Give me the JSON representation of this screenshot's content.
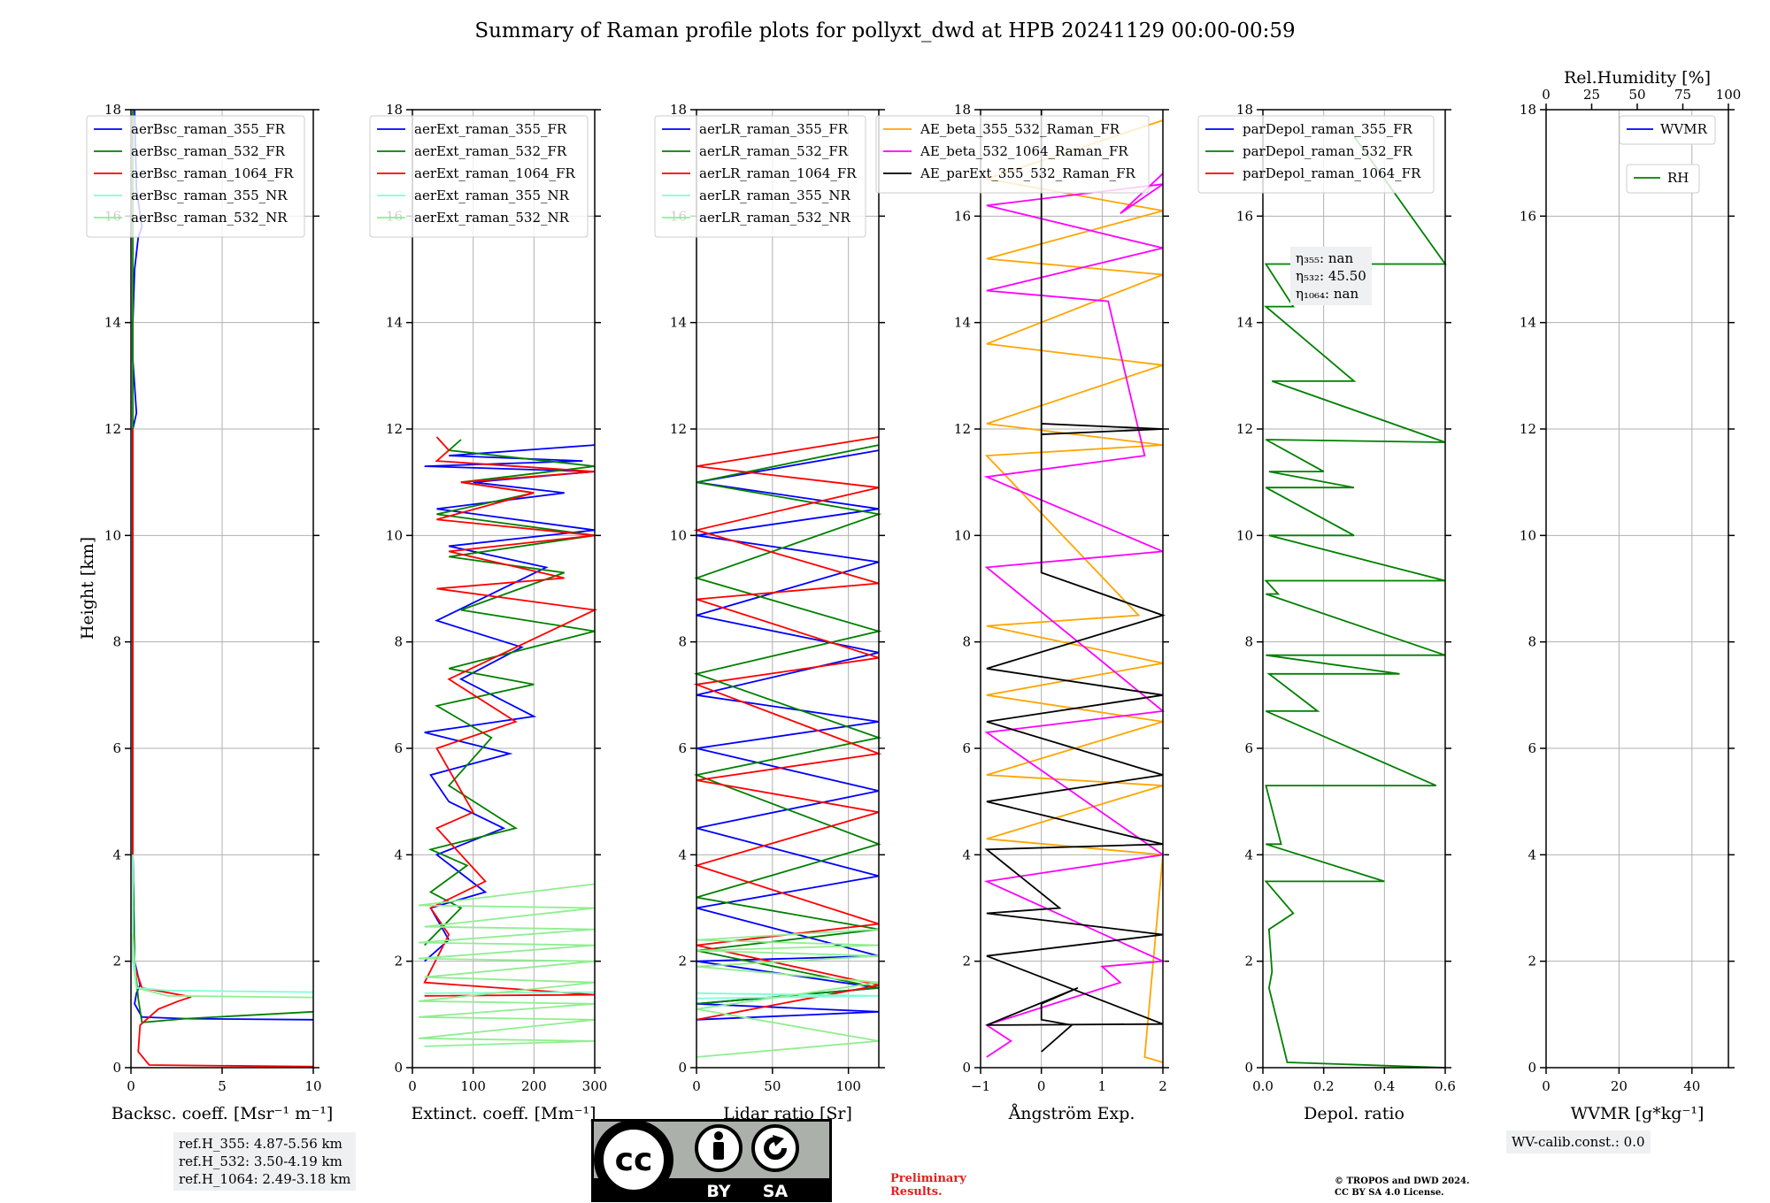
{
  "title": "Summary of Raman profile plots for pollyxt_dwd at HPB 20241129 00:00-00:59",
  "ylabel": "Height [km]",
  "y_ticks": [
    "0",
    "2",
    "4",
    "6",
    "8",
    "10",
    "12",
    "14",
    "16",
    "18"
  ],
  "colors": {
    "c355": "#0000ff",
    "c532": "#008000",
    "c1064": "#ff0000",
    "nr355": "#7fffd4",
    "nr532": "#90ee90",
    "orange": "#ffa500",
    "magenta": "#ff00ff",
    "black": "#000000"
  },
  "chart_data": [
    {
      "type": "line",
      "id": "bsc",
      "xlabel": "Backsc. coeff. [Msr⁻¹ m⁻¹]",
      "xlim": [
        0,
        10
      ],
      "ylim": [
        0,
        18
      ],
      "x_ticks": [
        "0",
        "5",
        "10"
      ],
      "legend": [
        "aerBsc_raman_355_FR",
        "aerBsc_raman_532_FR",
        "aerBsc_raman_1064_FR",
        "aerBsc_raman_355_NR",
        "aerBsc_raman_532_NR"
      ],
      "series": [
        {
          "name": "aerBsc_raman_355_FR",
          "x": [
            10,
            3,
            0.6,
            0.2,
            0.3,
            0.5,
            0.2,
            0.1,
            0.1,
            0.1,
            0.1,
            0.1,
            0.3,
            0.1,
            0.1,
            0.2,
            0.4,
            0.6,
            0.3,
            0.2
          ],
          "y": [
            0.9,
            0.92,
            0.95,
            1.2,
            1.4,
            1.55,
            2,
            4,
            6,
            8,
            10,
            12,
            12.3,
            13.3,
            14,
            15,
            15.6,
            15.8,
            16.5,
            18
          ]
        },
        {
          "name": "aerBsc_raman_532_FR",
          "x": [
            10,
            3,
            0.6,
            0.4,
            0.2,
            0.1,
            0.1,
            0.1,
            0.1,
            0.1
          ],
          "y": [
            1.05,
            0.92,
            0.85,
            1.3,
            2,
            4,
            8,
            12,
            16,
            18
          ]
        },
        {
          "name": "aerBsc_raman_1064_FR",
          "x": [
            10,
            1,
            0.4,
            0.5,
            1.5,
            2.6,
            3.3,
            0.6,
            0.1,
            0.1,
            0.1
          ],
          "y": [
            0.02,
            0.05,
            0.3,
            0.8,
            1.1,
            1.25,
            1.33,
            1.5,
            2,
            6,
            12
          ]
        },
        {
          "name": "aerBsc_raman_355_NR",
          "x": [
            10,
            2,
            0.3,
            0.1,
            0.1
          ],
          "y": [
            1.42,
            1.45,
            1.5,
            2,
            4
          ]
        },
        {
          "name": "aerBsc_raman_532_NR",
          "x": [
            10,
            2,
            0.3,
            0.1
          ],
          "y": [
            1.32,
            1.35,
            1.5,
            2.5
          ]
        }
      ]
    },
    {
      "type": "line",
      "id": "ext",
      "xlabel": "Extinct. coeff. [Mm⁻¹]",
      "xlim": [
        0,
        300
      ],
      "ylim": [
        0,
        18
      ],
      "x_ticks": [
        "0",
        "100",
        "200",
        "300"
      ],
      "legend": [
        "aerExt_raman_355_FR",
        "aerExt_raman_532_FR",
        "aerExt_raman_1064_FR",
        "aerExt_raman_355_NR",
        "aerExt_raman_532_NR"
      ],
      "series": [
        {
          "name": "aerExt_raman_355_FR",
          "x": [
            20,
            60,
            30,
            120,
            40,
            150,
            60,
            30,
            160,
            20,
            200,
            80,
            180,
            40,
            220,
            60,
            300,
            40,
            250,
            100,
            300,
            20,
            280,
            60,
            300
          ],
          "y": [
            2,
            2.4,
            3,
            3.3,
            4,
            4.5,
            5,
            5.5,
            5.9,
            6.3,
            6.6,
            7.3,
            7.9,
            8.4,
            9.4,
            9.8,
            10.1,
            10.5,
            10.8,
            11,
            11.2,
            11.3,
            11.4,
            11.5,
            11.7
          ]
        },
        {
          "name": "aerExt_raman_532_FR",
          "x": [
            20,
            80,
            30,
            90,
            30,
            170,
            60,
            130,
            40,
            200,
            60,
            300,
            80,
            250,
            60,
            300,
            40,
            200,
            80,
            300,
            60,
            80
          ],
          "y": [
            2.3,
            3,
            3.3,
            3.8,
            4.1,
            4.5,
            5.3,
            6.2,
            6.8,
            7.2,
            7.5,
            8.2,
            8.6,
            9.3,
            9.6,
            10,
            10.4,
            10.8,
            11,
            11.3,
            11.6,
            11.8
          ]
        },
        {
          "name": "aerExt_raman_1064_FR",
          "x": [
            20,
            300,
            20,
            60,
            30,
            120,
            40,
            100,
            40,
            170,
            60,
            300,
            40,
            250,
            60,
            300,
            40,
            200,
            80,
            300,
            40,
            60,
            40
          ],
          "y": [
            1.35,
            1.37,
            1.6,
            2.5,
            3,
            3.5,
            4.5,
            4.8,
            6,
            6.5,
            7.3,
            8.6,
            9,
            9.2,
            9.7,
            10,
            10.3,
            10.8,
            11,
            11.2,
            11.4,
            11.6,
            11.85
          ]
        },
        {
          "name": "aerExt_raman_355_NR",
          "x": [
            20,
            300
          ],
          "y": [
            1.4,
            1.42
          ]
        },
        {
          "name": "aerExt_raman_532_NR",
          "x": [
            20,
            300,
            10,
            300,
            10,
            300,
            10,
            300,
            20,
            300,
            10,
            300,
            10,
            300,
            20,
            300,
            10,
            300
          ],
          "y": [
            0.4,
            0.5,
            0.55,
            0.9,
            0.95,
            1.2,
            1.25,
            1.6,
            1.7,
            2,
            2.05,
            2.3,
            2.35,
            2.6,
            2.65,
            3,
            3.05,
            3.45
          ]
        }
      ]
    },
    {
      "type": "line",
      "id": "lr",
      "xlabel": "Lidar ratio [Sr]",
      "xlim": [
        0,
        120
      ],
      "ylim": [
        0,
        18
      ],
      "x_ticks": [
        "0",
        "50",
        "100"
      ],
      "legend": [
        "aerLR_raman_355_FR",
        "aerLR_raman_532_FR",
        "aerLR_raman_1064_FR",
        "aerLR_raman_355_NR",
        "aerLR_raman_532_NR"
      ],
      "series": [
        {
          "name": "aerLR_raman_355_FR",
          "x": [
            0,
            120,
            0,
            120,
            0,
            120,
            0,
            120,
            0,
            120,
            0,
            120,
            0,
            120,
            0,
            120,
            0,
            120,
            0,
            120
          ],
          "y": [
            0.9,
            1.05,
            1.2,
            1.5,
            2,
            2.1,
            3,
            3.6,
            4.5,
            5.2,
            6,
            6.5,
            7,
            7.8,
            8.5,
            9.5,
            10,
            10.5,
            11,
            11.6
          ]
        },
        {
          "name": "aerLR_raman_532_FR",
          "x": [
            0,
            120,
            0,
            120,
            0,
            120,
            0,
            120,
            0,
            120,
            0,
            120,
            0,
            120
          ],
          "y": [
            1.2,
            1.5,
            2.2,
            2.6,
            3.2,
            4.2,
            5.5,
            6.2,
            7.4,
            8.2,
            9.2,
            10.4,
            11,
            11.7
          ]
        },
        {
          "name": "aerLR_raman_1064_FR",
          "x": [
            0,
            120,
            0,
            120,
            0,
            120,
            0,
            120,
            0,
            120,
            0,
            120,
            0,
            120,
            0,
            120
          ],
          "y": [
            0.9,
            1.55,
            2.3,
            2.7,
            3.8,
            4.8,
            5.4,
            5.9,
            7.2,
            7.7,
            8.8,
            9.1,
            10.1,
            10.9,
            11.3,
            11.85
          ]
        },
        {
          "name": "aerLR_raman_355_NR",
          "x": [
            0,
            120,
            0
          ],
          "y": [
            1.3,
            1.35,
            1.4
          ]
        },
        {
          "name": "aerLR_raman_532_NR",
          "x": [
            0,
            120,
            0,
            120,
            0,
            120,
            0,
            120,
            0,
            120
          ],
          "y": [
            0.2,
            0.5,
            1.1,
            1.6,
            1.9,
            2.1,
            2.2,
            2.3,
            2.4,
            2.6
          ]
        }
      ]
    },
    {
      "type": "line",
      "id": "ae",
      "xlabel": "Ångström Exp.",
      "xlim": [
        -1,
        2
      ],
      "ylim": [
        0,
        18
      ],
      "x_ticks": [
        "−1",
        "0",
        "1",
        "2"
      ],
      "legend": [
        "AE_beta_355_532_Raman_FR",
        "AE_beta_532_1064_Raman_FR",
        "AE_parExt_355_532_Raman_FR"
      ],
      "series": [
        {
          "name": "AE_beta_355_532_Raman_FR",
          "x": [
            2,
            1.7,
            2,
            -0.9,
            2,
            -0.9,
            2,
            -0.9,
            2,
            -0.9,
            1.6,
            -0.9,
            2,
            -0.9,
            2,
            -0.9,
            2,
            -0.9,
            2,
            -0.9,
            2
          ],
          "y": [
            0.1,
            0.2,
            4,
            4.3,
            5.3,
            5.5,
            6.5,
            7,
            7.6,
            8.3,
            8.5,
            11.5,
            11.7,
            12.1,
            13.2,
            13.6,
            14.9,
            15.2,
            16.1,
            16.7,
            17.8
          ]
        },
        {
          "name": "AE_beta_532_1064_Raman_FR",
          "x": [
            -0.9,
            -0.5,
            -0.9,
            1.3,
            1,
            2,
            -0.9,
            2,
            -0.9,
            2,
            -0.9,
            2,
            -0.9,
            1.7,
            1.1,
            -0.9,
            2,
            -0.9,
            2,
            1.3,
            2
          ],
          "y": [
            0.2,
            0.5,
            0.8,
            1.6,
            1.9,
            2,
            3.5,
            4,
            6.3,
            6.7,
            9.4,
            9.7,
            11.1,
            11.5,
            14.4,
            14.6,
            15.4,
            16.2,
            16.6,
            16.05,
            16.8
          ]
        },
        {
          "name": "AE_parExt_355_532_Raman_FR",
          "x": [
            0,
            0.5,
            0,
            0,
            0.6,
            -0.9,
            2,
            -0.9,
            2,
            -0.9,
            0.3,
            -0.9,
            2,
            -0.9,
            2,
            -0.9,
            2,
            -0.9,
            2,
            0,
            0,
            2,
            0,
            0
          ],
          "y": [
            0.3,
            0.8,
            0.9,
            1.2,
            1.5,
            0.8,
            0.82,
            2.1,
            2.5,
            2.9,
            3,
            4.1,
            4.2,
            5,
            5.5,
            6.5,
            7,
            7.5,
            8.5,
            9.3,
            12.1,
            12,
            11.9,
            18
          ]
        }
      ]
    },
    {
      "type": "line",
      "id": "depol",
      "xlabel": "Depol. ratio",
      "xlim": [
        0,
        0.6
      ],
      "ylim": [
        0,
        18
      ],
      "x_ticks": [
        "0.0",
        "0.2",
        "0.4",
        "0.6"
      ],
      "legend": [
        "parDepol_raman_355_FR",
        "parDepol_raman_532_FR",
        "parDepol_raman_1064_FR"
      ],
      "series": [
        {
          "name": "parDepol_raman_532_FR",
          "x": [
            0.6,
            0.08,
            0.02,
            0.03,
            0.02,
            0.1,
            0.01,
            0.4,
            0.01,
            0.06,
            0.01,
            0.57,
            0.01,
            0.18,
            0.02,
            0.45,
            0.01,
            0.6,
            0.01,
            0.05,
            0.01,
            0.6,
            0.02,
            0.3,
            0.01,
            0.3,
            0.02,
            0.2,
            0.01,
            0.6,
            0.03,
            0.3,
            0.01,
            0.1,
            0.01,
            0.6,
            0.3
          ],
          "y": [
            0,
            0.1,
            1.5,
            1.8,
            2.6,
            2.9,
            3.5,
            3.5,
            4.2,
            4.2,
            5.3,
            5.3,
            6.7,
            6.7,
            7.4,
            7.4,
            7.75,
            7.75,
            8.9,
            8.9,
            9.15,
            9.15,
            10.0,
            10.0,
            10.9,
            10.9,
            11.2,
            11.2,
            11.8,
            11.75,
            12.9,
            12.9,
            14.3,
            14.3,
            15.1,
            15.1,
            17.5
          ]
        }
      ]
    },
    {
      "type": "line",
      "id": "wv",
      "xlabel": "WVMR [g*kg⁻¹]",
      "xlim": [
        0,
        50
      ],
      "ylim": [
        0,
        18
      ],
      "x_ticks": [
        "0",
        "20",
        "40"
      ],
      "top_xlabel": "Rel.Humidity [%]",
      "top_ticks": [
        "0",
        "25",
        "50",
        "75",
        "100"
      ],
      "legend": [
        "WVMR",
        "RH"
      ],
      "series": []
    }
  ],
  "eta_box": {
    "l1": "η₃₅₅: nan",
    "l2": "η₅₃₂: 45.50",
    "l3": "η₁₀₆₄: nan"
  },
  "refh_box": {
    "l1": "ref.H_355: 4.87-5.56 km",
    "l2": "ref.H_532: 3.50-4.19 km",
    "l3": "ref.H_1064: 2.49-3.18 km"
  },
  "wvcalib": "WV-calib.const.: 0.0",
  "license": {
    "cc": "cc",
    "by": "BY",
    "sa": "SA"
  },
  "prelim": {
    "l1": "Preliminary",
    "l2": "Results."
  },
  "copyright": {
    "l1": "© TROPOS and DWD 2024.",
    "l2": "CC BY SA 4.0 License."
  }
}
